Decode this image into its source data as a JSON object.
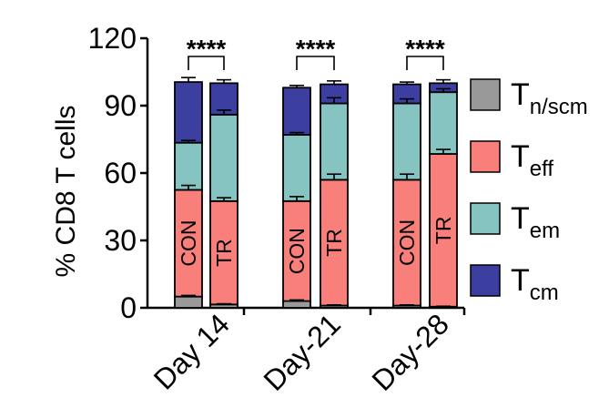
{
  "chart_data": {
    "type": "bar",
    "stacked": true,
    "ylabel": "% CD8 T cells",
    "ylim": [
      0,
      120
    ],
    "yticks": [
      "0",
      "30",
      "60",
      "90",
      "120"
    ],
    "ytick_values": [
      0,
      30,
      60,
      90,
      120
    ],
    "groups": [
      "Day 14",
      "Day-21",
      "Day-28"
    ],
    "bar_labels": [
      "CON",
      "TR"
    ],
    "significance": [
      "****",
      "****",
      "****"
    ],
    "series": [
      {
        "name": "T",
        "sub": "n/scm",
        "color": "#999999"
      },
      {
        "name": "T",
        "sub": "eff",
        "color": "#f97f7a"
      },
      {
        "name": "T",
        "sub": "em",
        "color": "#86c4c1"
      },
      {
        "name": "T",
        "sub": "cm",
        "color": "#3c3fa0"
      }
    ],
    "bars": [
      {
        "group": "Day 14",
        "label": "CON",
        "values": [
          5,
          47.5,
          21,
          27
        ],
        "err": [
          0.5,
          2,
          1,
          2
        ]
      },
      {
        "group": "Day 14",
        "label": "TR",
        "values": [
          1.5,
          46,
          38.5,
          14
        ],
        "err": [
          0.3,
          1.5,
          2,
          1.5
        ]
      },
      {
        "group": "Day-21",
        "label": "CON",
        "values": [
          3,
          44.5,
          29.5,
          21
        ],
        "err": [
          0.5,
          2,
          1,
          1
        ]
      },
      {
        "group": "Day-21",
        "label": "TR",
        "values": [
          1,
          56,
          34,
          8.5
        ],
        "err": [
          0.3,
          2.5,
          2.5,
          1.5
        ]
      },
      {
        "group": "Day-28",
        "label": "CON",
        "values": [
          1,
          56,
          34,
          8.5
        ],
        "err": [
          0.3,
          2.5,
          2,
          1
        ]
      },
      {
        "group": "Day-28",
        "label": "TR",
        "values": [
          0.5,
          68,
          27.5,
          4
        ],
        "err": [
          0.2,
          2,
          1.5,
          1.5
        ]
      }
    ]
  }
}
